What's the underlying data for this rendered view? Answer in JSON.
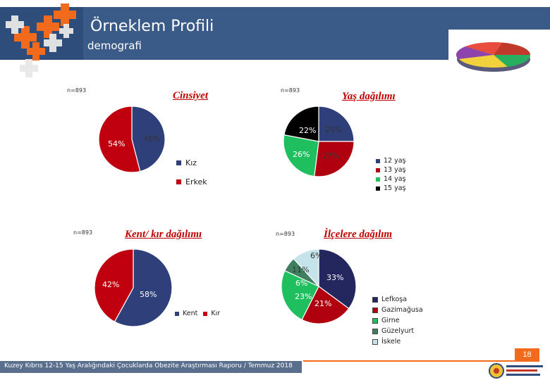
{
  "header": {
    "title": "Örneklem Profili",
    "subtitle": "demografi",
    "colors": {
      "bar": "#2f4d7a",
      "accent": "#f26b1d"
    }
  },
  "charts": {
    "gender": {
      "n_label": "n=893",
      "legend_items": [
        "Kız",
        "Erkek"
      ]
    },
    "age": {
      "n_label": "n=893",
      "legend_items": [
        "12 yaş",
        "13 yaş",
        "14 yaş",
        "15 yaş"
      ]
    },
    "urban": {
      "n_label": "n=893",
      "legend_items": [
        "Kent",
        "Kır"
      ]
    },
    "district": {
      "n_label": "n=893",
      "legend_items": [
        "Lefkoşa",
        "Gazimağusa",
        "Girne",
        "Güzelyurt",
        "İskele"
      ]
    }
  },
  "chart_data": [
    {
      "type": "pie",
      "title": "Cinsiyet",
      "categories": [
        "Kız",
        "Erkek"
      ],
      "values": [
        46,
        54
      ],
      "labels": [
        "46%",
        "54%"
      ],
      "colors": [
        "#2f3f7a",
        "#c0000f"
      ],
      "legend": "right"
    },
    {
      "type": "pie",
      "title": "Yaş dağılımı",
      "categories": [
        "12 yaş",
        "13 yaş",
        "14 yaş",
        "15 yaş"
      ],
      "values": [
        25,
        27,
        26,
        22
      ],
      "labels": [
        "25%",
        "27%",
        "26%",
        "22%"
      ],
      "colors": [
        "#2f3f7a",
        "#b00010",
        "#1fbf5f",
        "#000000"
      ],
      "legend": "right"
    },
    {
      "type": "pie",
      "title": "Kent/ kır dağılımı",
      "categories": [
        "Kent",
        "Kır"
      ],
      "values": [
        58,
        42
      ],
      "labels": [
        "58%",
        "42%"
      ],
      "colors": [
        "#2f3f7a",
        "#c0000f"
      ],
      "legend": "bottom"
    },
    {
      "type": "pie",
      "title": "İlçelere dağılım",
      "categories": [
        "Lefkoşa",
        "Gazimağusa",
        "Girne",
        "Güzelyurt",
        "İskele"
      ],
      "values": [
        33,
        21,
        23,
        6,
        11
      ],
      "labels": [
        "33%",
        "21%",
        "23%",
        "6%",
        "11%"
      ],
      "extra_label": "6%",
      "colors": [
        "#23275e",
        "#b00010",
        "#1fbf5f",
        "#3f7f5f",
        "#c5e3ea"
      ],
      "legend": "right"
    }
  ],
  "footer": {
    "text": "Kuzey Kıbrıs 12-15 Yaş Aralığındaki Çocuklarda Obezite Araştırması Raporu / Temmuz 2018",
    "page_number": "18"
  }
}
